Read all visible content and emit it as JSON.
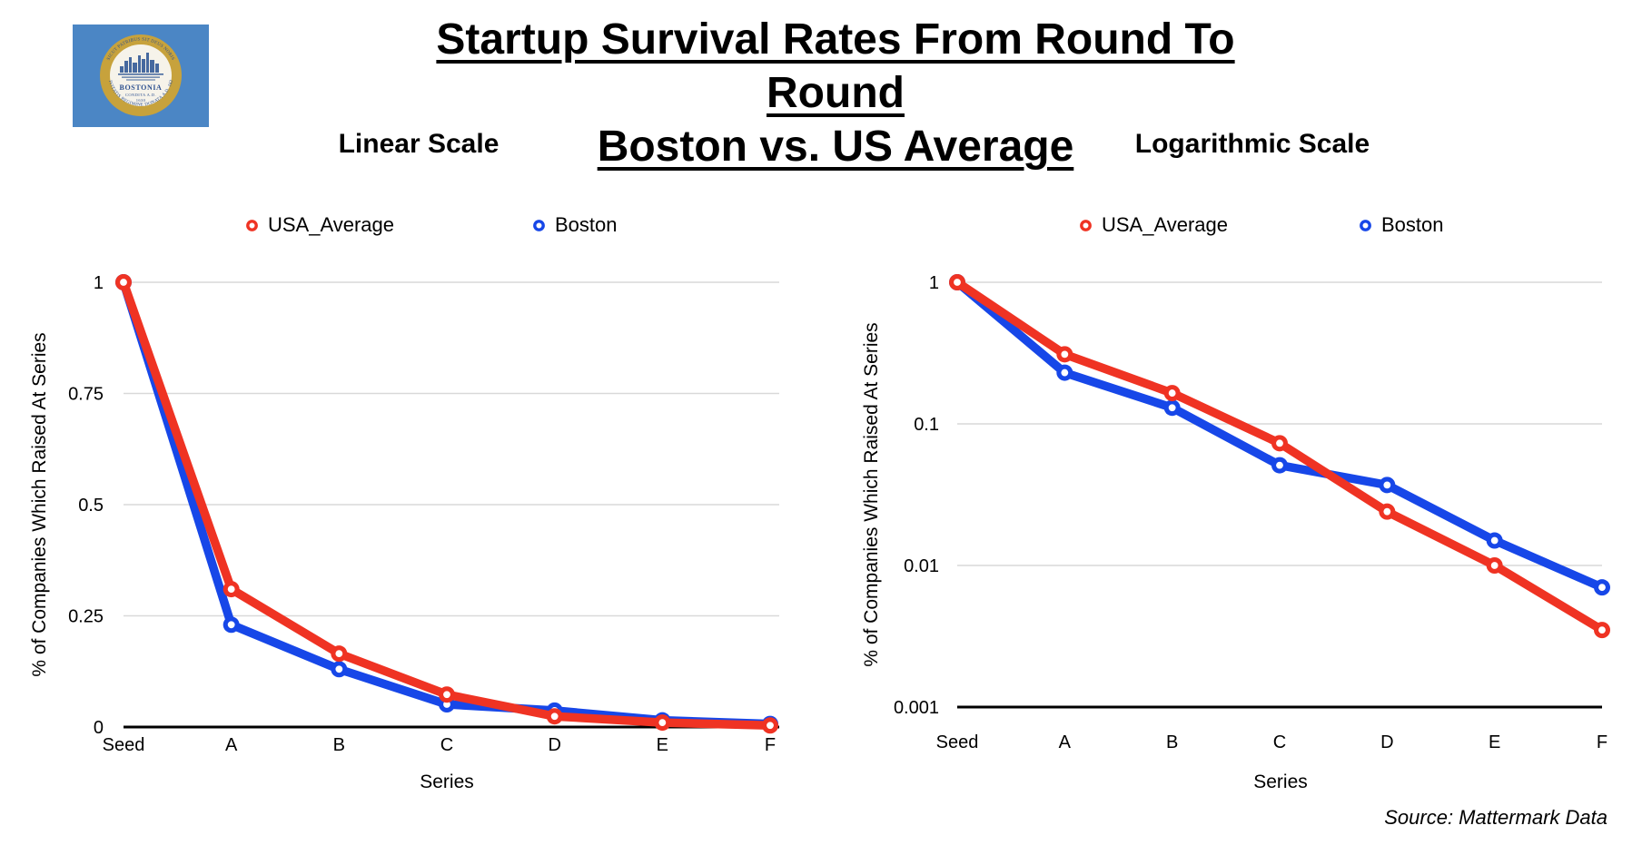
{
  "header": {
    "title_line1": "Startup Survival Rates From Round To Round",
    "title_line2": "Boston vs. US Average"
  },
  "flag": {
    "name": "City of Boston flag",
    "field_color": "#4b86c5",
    "seal_ring_color": "#c7a23c",
    "seal_inner_color": "#f6f3ea",
    "seal_art_color": "#46699f",
    "seal_motto_top": "SICUT PATRIBUS SIT DEUS NOBIS",
    "seal_motto_bottom": "CIVITATIS REGIMINE DONATA A.D. 1822",
    "seal_name": "BOSTONIA",
    "seal_sub": "CONDITA A.D.",
    "seal_year": "1630"
  },
  "source": {
    "text": "Source: Mattermark Data"
  },
  "colors": {
    "usa_average": "#ef3323",
    "boston": "#1747e8",
    "gridline": "#d9d9d9",
    "axis": "#000000"
  },
  "chart_data": [
    {
      "type": "line",
      "title": "Linear Scale",
      "scale": "linear",
      "x_label": "Series",
      "y_label": "% of Companies Which Raised At Series",
      "categories": [
        "Seed",
        "A",
        "B",
        "C",
        "D",
        "E",
        "F"
      ],
      "series": [
        {
          "name": "USA_Average",
          "color": "#ef3323",
          "values": [
            1,
            0.31,
            0.165,
            0.073,
            0.024,
            0.01,
            0.0035
          ]
        },
        {
          "name": "Boston",
          "color": "#1747e8",
          "values": [
            1,
            0.23,
            0.13,
            0.051,
            0.037,
            0.015,
            0.007
          ]
        }
      ],
      "ylim": [
        0,
        1
      ],
      "yticks": [
        {
          "value": 1,
          "label": "1"
        },
        {
          "value": 0.75,
          "label": "0.75"
        },
        {
          "value": 0.5,
          "label": "0.5"
        },
        {
          "value": 0.25,
          "label": "0.25"
        },
        {
          "value": 0,
          "label": "0"
        }
      ],
      "grid": true,
      "legend_position": "top"
    },
    {
      "type": "line",
      "title": "Logarithmic Scale",
      "scale": "log",
      "x_label": "Series",
      "y_label": "% of Companies Which Raised At Series",
      "categories": [
        "Seed",
        "A",
        "B",
        "C",
        "D",
        "E",
        "F"
      ],
      "series": [
        {
          "name": "USA_Average",
          "color": "#ef3323",
          "values": [
            1,
            0.31,
            0.165,
            0.073,
            0.024,
            0.01,
            0.0035
          ]
        },
        {
          "name": "Boston",
          "color": "#1747e8",
          "values": [
            1,
            0.23,
            0.13,
            0.051,
            0.037,
            0.015,
            0.007
          ]
        }
      ],
      "ylim": [
        0.001,
        1
      ],
      "yticks": [
        {
          "value": 1,
          "label": "1"
        },
        {
          "value": 0.1,
          "label": "0.1"
        },
        {
          "value": 0.01,
          "label": "0.01"
        },
        {
          "value": 0.001,
          "label": "0.001"
        }
      ],
      "grid": true,
      "legend_position": "top"
    }
  ]
}
